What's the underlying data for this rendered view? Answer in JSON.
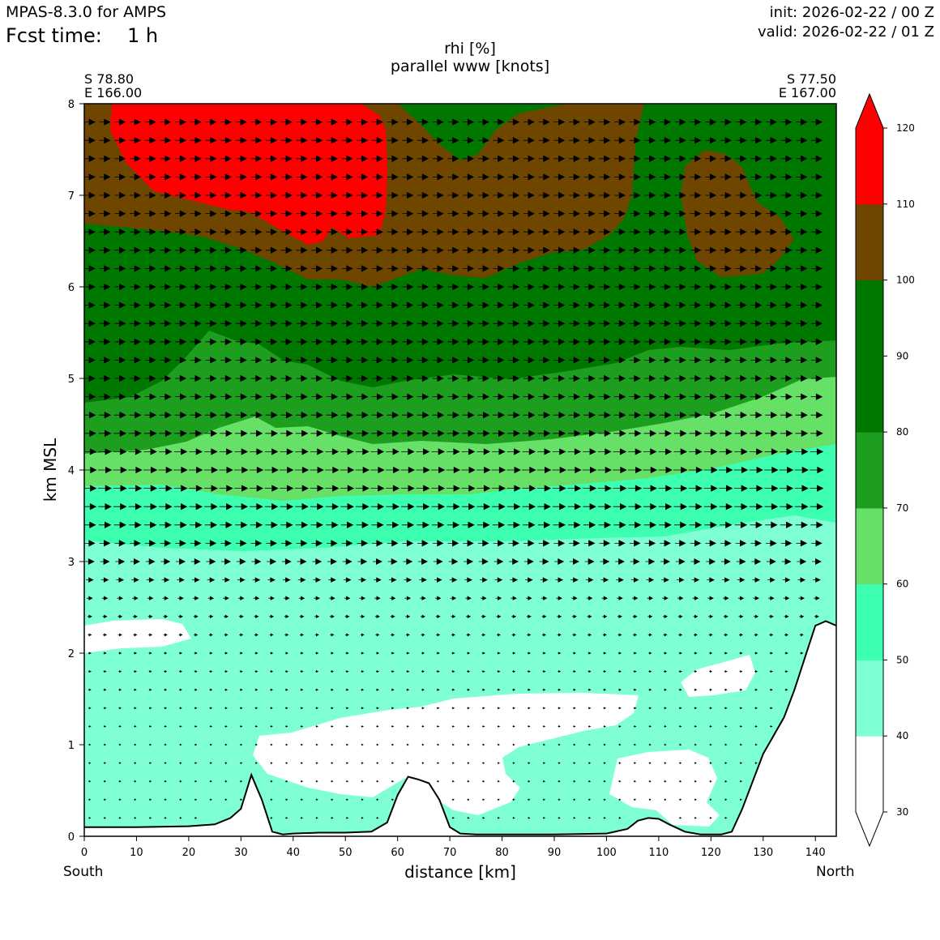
{
  "header": {
    "model": "MPAS-8.3.0 for AMPS",
    "fcst_label": "Fcst time:",
    "fcst_value": "1 h",
    "init": "init: 2026-02-22 / 00 Z",
    "valid": "valid: 2026-02-22 / 01 Z"
  },
  "section": {
    "start_lat": "S 78.80",
    "start_lon": "E 166.00",
    "end_lat": "S 77.50",
    "end_lon": "E 167.00",
    "south": "South",
    "north": "North"
  },
  "chart_data": {
    "type": "heatmap",
    "title": "rhi [%]",
    "subtitle": "parallel www [knots]",
    "xlabel": "distance [km]",
    "ylabel": "km MSL",
    "xlim": [
      0,
      144
    ],
    "ylim": [
      0,
      8
    ],
    "xticks": [
      0,
      10,
      20,
      30,
      40,
      50,
      60,
      70,
      80,
      90,
      100,
      110,
      120,
      130,
      140
    ],
    "yticks": [
      0,
      1,
      2,
      3,
      4,
      5,
      6,
      7,
      8
    ],
    "colorbar": {
      "levels": [
        30,
        40,
        50,
        60,
        70,
        80,
        90,
        100,
        110,
        120
      ],
      "colors": [
        "#ffffff",
        "#7fffd4",
        "#3cffb0",
        "#66e066",
        "#1e9e1e",
        "#007800",
        "#007800",
        "#6e4600",
        "#ff0000"
      ],
      "extend": "both"
    },
    "rhi_bands": [
      {
        "range": "30-40",
        "color": "#ffffff"
      },
      {
        "range": "40-50",
        "color": "#7fffd4"
      },
      {
        "range": "50-60",
        "color": "#3cffb0"
      },
      {
        "range": "60-70",
        "color": "#66e066"
      },
      {
        "range": "70-80",
        "color": "#1e9e1e"
      },
      {
        "range": "80-100",
        "color": "#007800"
      },
      {
        "range": "100-110",
        "color": "#6e4600"
      },
      {
        "range": ">110",
        "color": "#ff0000"
      }
    ],
    "terrain_profile": {
      "x": [
        0,
        10,
        20,
        25,
        28,
        30,
        32,
        34,
        36,
        38,
        40,
        45,
        50,
        55,
        58,
        60,
        62,
        64,
        66,
        68,
        70,
        72,
        75,
        80,
        90,
        100,
        104,
        106,
        108,
        110,
        112,
        115,
        118,
        122,
        124,
        126,
        128,
        130,
        132,
        134,
        136,
        138,
        140,
        142,
        144
      ],
      "y": [
        0.1,
        0.1,
        0.11,
        0.13,
        0.2,
        0.3,
        0.67,
        0.4,
        0.05,
        0.02,
        0.03,
        0.04,
        0.04,
        0.05,
        0.15,
        0.45,
        0.65,
        0.62,
        0.58,
        0.4,
        0.1,
        0.03,
        0.02,
        0.02,
        0.02,
        0.03,
        0.08,
        0.17,
        0.2,
        0.19,
        0.13,
        0.05,
        0.02,
        0.02,
        0.05,
        0.3,
        0.6,
        0.9,
        1.1,
        1.3,
        1.6,
        1.95,
        2.3,
        2.35,
        2.3
      ]
    },
    "wind_u_profile": {
      "z": [
        0.2,
        1.0,
        2.0,
        2.5,
        3.0,
        3.5,
        4.0,
        4.5,
        5.0,
        6.0,
        7.0,
        8.0
      ],
      "speed_knots": [
        2,
        2,
        3,
        5,
        10,
        14,
        15,
        13,
        12,
        12,
        12,
        12
      ]
    }
  }
}
